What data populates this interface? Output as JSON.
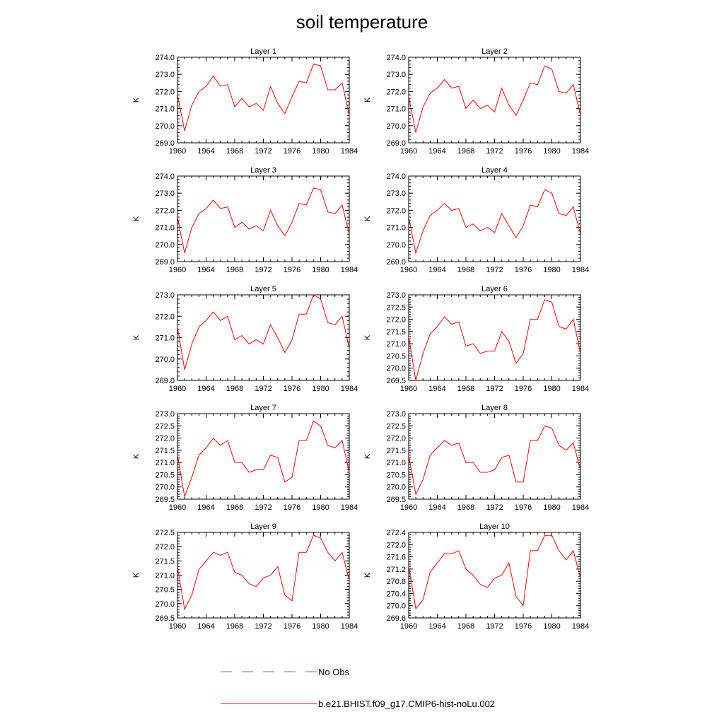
{
  "title": "soil temperature",
  "colors": {
    "model_line": "#ff0000",
    "obs_line": "#6b6bd6",
    "axis": "#000000",
    "background": "#ffffff"
  },
  "legend": {
    "obs_label": "No Obs",
    "model_label": "b.e21.BHIST.f09_g17.CMIP6-hist-noLu.002"
  },
  "chart_data": [
    {
      "type": "line",
      "title": "Layer 1",
      "ylabel": "K",
      "xlim": [
        1960,
        1984
      ],
      "ylim": [
        269.0,
        274.0
      ],
      "xticks": [
        "1960",
        "1964",
        "1968",
        "1972",
        "1976",
        "1980",
        "1984"
      ],
      "yticks": [
        "269.0",
        "270.0",
        "271.0",
        "272.0",
        "273.0",
        "274.0"
      ],
      "ytick_values": [
        269.0,
        270.0,
        271.0,
        272.0,
        273.0,
        274.0
      ],
      "x": [
        1960,
        1961,
        1962,
        1963,
        1964,
        1965,
        1966,
        1967,
        1968,
        1969,
        1970,
        1971,
        1972,
        1973,
        1974,
        1975,
        1976,
        1977,
        1978,
        1979,
        1980,
        1981,
        1982,
        1983,
        1984
      ],
      "values": [
        271.8,
        269.7,
        271.2,
        272.0,
        272.3,
        272.9,
        272.3,
        272.4,
        271.1,
        271.6,
        271.1,
        271.3,
        270.9,
        272.3,
        271.3,
        270.7,
        271.7,
        272.6,
        272.5,
        273.6,
        273.5,
        272.1,
        272.1,
        272.5,
        270.6
      ]
    },
    {
      "type": "line",
      "title": "Layer 2",
      "ylabel": "K",
      "xlim": [
        1960,
        1984
      ],
      "ylim": [
        269.0,
        274.0
      ],
      "xticks": [
        "1960",
        "1964",
        "1968",
        "1972",
        "1976",
        "1980",
        "1984"
      ],
      "yticks": [
        "269.0",
        "270.0",
        "271.0",
        "272.0",
        "273.0",
        "274.0"
      ],
      "ytick_values": [
        269.0,
        270.0,
        271.0,
        272.0,
        273.0,
        274.0
      ],
      "x": [
        1960,
        1961,
        1962,
        1963,
        1964,
        1965,
        1966,
        1967,
        1968,
        1969,
        1970,
        1971,
        1972,
        1973,
        1974,
        1975,
        1976,
        1977,
        1978,
        1979,
        1980,
        1981,
        1982,
        1983,
        1984
      ],
      "values": [
        271.7,
        269.6,
        271.1,
        271.9,
        272.2,
        272.7,
        272.2,
        272.3,
        271.0,
        271.5,
        271.0,
        271.2,
        270.8,
        272.2,
        271.2,
        270.6,
        271.5,
        272.5,
        272.4,
        273.5,
        273.3,
        272.0,
        271.9,
        272.4,
        270.6
      ]
    },
    {
      "type": "line",
      "title": "Layer 3",
      "ylabel": "K",
      "xlim": [
        1960,
        1984
      ],
      "ylim": [
        269.0,
        274.0
      ],
      "xticks": [
        "1960",
        "1964",
        "1968",
        "1972",
        "1976",
        "1980",
        "1984"
      ],
      "yticks": [
        "269.0",
        "270.0",
        "271.0",
        "272.0",
        "273.0",
        "274.0"
      ],
      "ytick_values": [
        269.0,
        270.0,
        271.0,
        272.0,
        273.0,
        274.0
      ],
      "x": [
        1960,
        1961,
        1962,
        1963,
        1964,
        1965,
        1966,
        1967,
        1968,
        1969,
        1970,
        1971,
        1972,
        1973,
        1974,
        1975,
        1976,
        1977,
        1978,
        1979,
        1980,
        1981,
        1982,
        1983,
        1984
      ],
      "values": [
        271.6,
        269.5,
        271.0,
        271.8,
        272.1,
        272.6,
        272.1,
        272.2,
        271.0,
        271.3,
        270.9,
        271.1,
        270.8,
        272.0,
        271.1,
        270.5,
        271.3,
        272.4,
        272.3,
        273.3,
        273.2,
        271.9,
        271.8,
        272.3,
        270.6
      ]
    },
    {
      "type": "line",
      "title": "Layer 4",
      "ylabel": "K",
      "xlim": [
        1960,
        1984
      ],
      "ylim": [
        269.0,
        274.0
      ],
      "xticks": [
        "1960",
        "1964",
        "1968",
        "1972",
        "1976",
        "1980",
        "1984"
      ],
      "yticks": [
        "269.0",
        "270.0",
        "271.0",
        "272.0",
        "273.0",
        "274.0"
      ],
      "ytick_values": [
        269.0,
        270.0,
        271.0,
        272.0,
        273.0,
        274.0
      ],
      "x": [
        1960,
        1961,
        1962,
        1963,
        1964,
        1965,
        1966,
        1967,
        1968,
        1969,
        1970,
        1971,
        1972,
        1973,
        1974,
        1975,
        1976,
        1977,
        1978,
        1979,
        1980,
        1981,
        1982,
        1983,
        1984
      ],
      "values": [
        271.6,
        269.5,
        270.8,
        271.7,
        272.0,
        272.4,
        272.0,
        272.1,
        271.0,
        271.2,
        270.8,
        271.0,
        270.7,
        271.8,
        271.1,
        270.4,
        271.1,
        272.3,
        272.2,
        273.2,
        273.0,
        271.8,
        271.7,
        272.2,
        270.6
      ]
    },
    {
      "type": "line",
      "title": "Layer 5",
      "ylabel": "K",
      "xlim": [
        1960,
        1984
      ],
      "ylim": [
        269.0,
        273.0
      ],
      "xticks": [
        "1960",
        "1964",
        "1968",
        "1972",
        "1976",
        "1980",
        "1984"
      ],
      "yticks": [
        "269.0",
        "270.0",
        "271.0",
        "272.0",
        "273.0"
      ],
      "ytick_values": [
        269.0,
        270.0,
        271.0,
        272.0,
        273.0
      ],
      "x": [
        1960,
        1961,
        1962,
        1963,
        1964,
        1965,
        1966,
        1967,
        1968,
        1969,
        1970,
        1971,
        1972,
        1973,
        1974,
        1975,
        1976,
        1977,
        1978,
        1979,
        1980,
        1981,
        1982,
        1983,
        1984
      ],
      "values": [
        271.5,
        269.5,
        270.7,
        271.5,
        271.8,
        272.2,
        271.8,
        272.0,
        270.9,
        271.1,
        270.7,
        270.9,
        270.7,
        271.6,
        271.0,
        270.3,
        270.9,
        272.1,
        272.1,
        273.0,
        272.8,
        271.7,
        271.6,
        272.0,
        270.5
      ]
    },
    {
      "type": "line",
      "title": "Layer 6",
      "ylabel": "K",
      "xlim": [
        1960,
        1984
      ],
      "ylim": [
        269.5,
        273.0
      ],
      "xticks": [
        "1960",
        "1964",
        "1968",
        "1972",
        "1976",
        "1980",
        "1984"
      ],
      "yticks": [
        "269.5",
        "270.0",
        "270.5",
        "271.0",
        "271.5",
        "272.0",
        "272.5",
        "273.0"
      ],
      "ytick_values": [
        269.5,
        270.0,
        270.5,
        271.0,
        271.5,
        272.0,
        272.5,
        273.0
      ],
      "x": [
        1960,
        1961,
        1962,
        1963,
        1964,
        1965,
        1966,
        1967,
        1968,
        1969,
        1970,
        1971,
        1972,
        1973,
        1974,
        1975,
        1976,
        1977,
        1978,
        1979,
        1980,
        1981,
        1982,
        1983,
        1984
      ],
      "values": [
        271.3,
        269.5,
        270.6,
        271.4,
        271.7,
        272.1,
        271.8,
        271.9,
        270.9,
        271.0,
        270.6,
        270.7,
        270.7,
        271.5,
        271.1,
        270.2,
        270.6,
        272.0,
        272.0,
        272.8,
        272.7,
        271.7,
        271.6,
        272.0,
        270.6
      ]
    },
    {
      "type": "line",
      "title": "Layer 7",
      "ylabel": "K",
      "xlim": [
        1960,
        1984
      ],
      "ylim": [
        269.5,
        273.0
      ],
      "xticks": [
        "1960",
        "1964",
        "1968",
        "1972",
        "1976",
        "1980",
        "1984"
      ],
      "yticks": [
        "269.5",
        "270.0",
        "270.5",
        "271.0",
        "271.5",
        "272.0",
        "272.5",
        "273.0"
      ],
      "ytick_values": [
        269.5,
        270.0,
        270.5,
        271.0,
        271.5,
        272.0,
        272.5,
        273.0
      ],
      "x": [
        1960,
        1961,
        1962,
        1963,
        1964,
        1965,
        1966,
        1967,
        1968,
        1969,
        1970,
        1971,
        1972,
        1973,
        1974,
        1975,
        1976,
        1977,
        1978,
        1979,
        1980,
        1981,
        1982,
        1983,
        1984
      ],
      "values": [
        271.3,
        269.6,
        270.4,
        271.3,
        271.6,
        272.0,
        271.7,
        271.9,
        271.0,
        271.0,
        270.6,
        270.7,
        270.7,
        271.3,
        271.2,
        270.2,
        270.4,
        271.9,
        271.9,
        272.7,
        272.5,
        271.7,
        271.6,
        271.9,
        270.6
      ]
    },
    {
      "type": "line",
      "title": "Layer 8",
      "ylabel": "K",
      "xlim": [
        1960,
        1984
      ],
      "ylim": [
        269.5,
        273.0
      ],
      "xticks": [
        "1960",
        "1964",
        "1968",
        "1972",
        "1976",
        "1980",
        "1984"
      ],
      "yticks": [
        "269.5",
        "270.0",
        "270.5",
        "271.0",
        "271.5",
        "272.0",
        "272.5",
        "273.0"
      ],
      "ytick_values": [
        269.5,
        270.0,
        270.5,
        271.0,
        271.5,
        272.0,
        272.5,
        273.0
      ],
      "x": [
        1960,
        1961,
        1962,
        1963,
        1964,
        1965,
        1966,
        1967,
        1968,
        1969,
        1970,
        1971,
        1972,
        1973,
        1974,
        1975,
        1976,
        1977,
        1978,
        1979,
        1980,
        1981,
        1982,
        1983,
        1984
      ],
      "values": [
        271.3,
        269.7,
        270.3,
        271.3,
        271.6,
        271.9,
        271.7,
        271.8,
        271.0,
        271.0,
        270.6,
        270.6,
        270.7,
        271.2,
        271.3,
        270.2,
        270.2,
        271.9,
        271.9,
        272.5,
        272.4,
        271.7,
        271.5,
        271.8,
        270.7
      ]
    },
    {
      "type": "line",
      "title": "Layer 9",
      "ylabel": "K",
      "xlim": [
        1960,
        1984
      ],
      "ylim": [
        269.5,
        272.5
      ],
      "xticks": [
        "1960",
        "1964",
        "1968",
        "1972",
        "1976",
        "1980",
        "1984"
      ],
      "yticks": [
        "269.5",
        "270.0",
        "270.5",
        "271.0",
        "271.5",
        "272.0",
        "272.5"
      ],
      "ytick_values": [
        269.5,
        270.0,
        270.5,
        271.0,
        271.5,
        272.0,
        272.5
      ],
      "x": [
        1960,
        1961,
        1962,
        1963,
        1964,
        1965,
        1966,
        1967,
        1968,
        1969,
        1970,
        1971,
        1972,
        1973,
        1974,
        1975,
        1976,
        1977,
        1978,
        1979,
        1980,
        1981,
        1982,
        1983,
        1984
      ],
      "values": [
        271.3,
        269.8,
        270.3,
        271.2,
        271.5,
        271.8,
        271.7,
        271.8,
        271.1,
        271.0,
        270.7,
        270.6,
        270.9,
        271.0,
        271.3,
        270.3,
        270.1,
        271.8,
        271.8,
        272.4,
        272.3,
        271.8,
        271.5,
        271.8,
        270.8
      ]
    },
    {
      "type": "line",
      "title": "Layer 10",
      "ylabel": "K",
      "xlim": [
        1960,
        1984
      ],
      "ylim": [
        269.6,
        272.4
      ],
      "xticks": [
        "1960",
        "1964",
        "1968",
        "1972",
        "1976",
        "1980",
        "1984"
      ],
      "yticks": [
        "269.6",
        "270.0",
        "270.4",
        "270.8",
        "271.2",
        "271.6",
        "272.0",
        "272.4"
      ],
      "ytick_values": [
        269.6,
        270.0,
        270.4,
        270.8,
        271.2,
        271.6,
        272.0,
        272.4
      ],
      "x": [
        1960,
        1961,
        1962,
        1963,
        1964,
        1965,
        1966,
        1967,
        1968,
        1969,
        1970,
        1971,
        1972,
        1973,
        1974,
        1975,
        1976,
        1977,
        1978,
        1979,
        1980,
        1981,
        1982,
        1983,
        1984
      ],
      "values": [
        271.3,
        269.9,
        270.2,
        271.1,
        271.4,
        271.7,
        271.7,
        271.8,
        271.2,
        271.0,
        270.7,
        270.6,
        270.9,
        271.0,
        271.4,
        270.3,
        270.0,
        271.8,
        271.8,
        272.3,
        272.3,
        271.8,
        271.5,
        271.8,
        270.9
      ]
    }
  ]
}
